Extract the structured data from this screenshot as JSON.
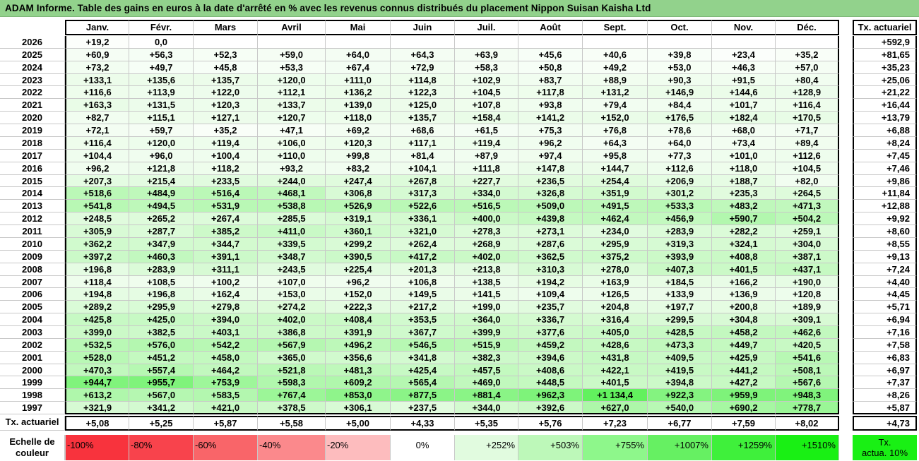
{
  "title": "ADAM Informe. Table des gains en euros à la date d'arrêté en % avec les revenus connus distribués du placement Nippon Suisan Kaisha Ltd",
  "months": [
    "Janv.",
    "Févr.",
    "Mars",
    "Avril",
    "Mai",
    "Juin",
    "Juil.",
    "Août",
    "Sept.",
    "Oct.",
    "Nov.",
    "Déc."
  ],
  "tx_header": "Tx. actuariel",
  "rows": [
    {
      "year": "2026",
      "values": [
        "+19,2",
        "0,0",
        "",
        "",
        "",
        "",
        "",
        "",
        "",
        "",
        "",
        ""
      ],
      "tx": "+592,9"
    },
    {
      "year": "2025",
      "values": [
        "+60,9",
        "+56,3",
        "+52,3",
        "+59,0",
        "+64,0",
        "+64,3",
        "+63,9",
        "+45,6",
        "+40,6",
        "+39,8",
        "+23,4",
        "+35,2"
      ],
      "tx": "+81,65"
    },
    {
      "year": "2024",
      "values": [
        "+73,2",
        "+49,7",
        "+45,8",
        "+53,3",
        "+67,4",
        "+72,9",
        "+58,3",
        "+50,8",
        "+49,2",
        "+53,0",
        "+46,3",
        "+57,0"
      ],
      "tx": "+35,23"
    },
    {
      "year": "2023",
      "values": [
        "+133,1",
        "+135,6",
        "+135,7",
        "+120,0",
        "+111,0",
        "+114,8",
        "+102,9",
        "+83,7",
        "+88,9",
        "+90,3",
        "+91,5",
        "+80,4"
      ],
      "tx": "+25,06"
    },
    {
      "year": "2022",
      "values": [
        "+116,6",
        "+113,9",
        "+122,0",
        "+112,1",
        "+136,2",
        "+122,3",
        "+104,5",
        "+117,8",
        "+131,2",
        "+146,9",
        "+144,6",
        "+128,9"
      ],
      "tx": "+21,22"
    },
    {
      "year": "2021",
      "values": [
        "+163,3",
        "+131,5",
        "+120,3",
        "+133,7",
        "+139,0",
        "+125,0",
        "+107,8",
        "+93,8",
        "+79,4",
        "+84,4",
        "+101,7",
        "+116,4"
      ],
      "tx": "+16,44"
    },
    {
      "year": "2020",
      "values": [
        "+82,7",
        "+115,1",
        "+127,1",
        "+120,7",
        "+118,0",
        "+135,7",
        "+158,4",
        "+141,2",
        "+152,0",
        "+176,5",
        "+182,4",
        "+170,5"
      ],
      "tx": "+13,79"
    },
    {
      "year": "2019",
      "values": [
        "+72,1",
        "+59,7",
        "+35,2",
        "+47,1",
        "+69,2",
        "+68,6",
        "+61,5",
        "+75,3",
        "+76,8",
        "+78,6",
        "+68,0",
        "+71,7"
      ],
      "tx": "+6,88"
    },
    {
      "year": "2018",
      "values": [
        "+116,4",
        "+120,0",
        "+119,4",
        "+106,0",
        "+120,3",
        "+117,1",
        "+119,4",
        "+96,2",
        "+64,3",
        "+64,0",
        "+73,4",
        "+89,4"
      ],
      "tx": "+8,24"
    },
    {
      "year": "2017",
      "values": [
        "+104,4",
        "+96,0",
        "+100,4",
        "+110,0",
        "+99,8",
        "+81,4",
        "+87,9",
        "+97,4",
        "+95,8",
        "+77,3",
        "+101,0",
        "+112,6"
      ],
      "tx": "+7,45"
    },
    {
      "year": "2016",
      "values": [
        "+96,2",
        "+121,8",
        "+118,2",
        "+93,2",
        "+83,2",
        "+104,1",
        "+111,8",
        "+147,8",
        "+144,7",
        "+112,6",
        "+118,0",
        "+104,5"
      ],
      "tx": "+7,46"
    },
    {
      "year": "2015",
      "values": [
        "+207,3",
        "+215,4",
        "+233,5",
        "+244,0",
        "+247,4",
        "+267,8",
        "+227,7",
        "+236,5",
        "+254,4",
        "+206,9",
        "+188,7",
        "+82,0"
      ],
      "tx": "+9,86"
    },
    {
      "year": "2014",
      "values": [
        "+518,6",
        "+484,9",
        "+516,4",
        "+468,1",
        "+306,8",
        "+317,3",
        "+334,0",
        "+326,8",
        "+351,9",
        "+301,2",
        "+235,3",
        "+264,5"
      ],
      "tx": "+11,84"
    },
    {
      "year": "2013",
      "values": [
        "+541,8",
        "+494,5",
        "+531,9",
        "+538,8",
        "+526,9",
        "+522,6",
        "+516,5",
        "+509,0",
        "+491,5",
        "+533,3",
        "+483,2",
        "+471,3"
      ],
      "tx": "+12,88"
    },
    {
      "year": "2012",
      "values": [
        "+248,5",
        "+265,2",
        "+267,4",
        "+285,5",
        "+319,1",
        "+336,1",
        "+400,0",
        "+439,8",
        "+462,4",
        "+456,9",
        "+590,7",
        "+504,2"
      ],
      "tx": "+9,92"
    },
    {
      "year": "2011",
      "values": [
        "+305,9",
        "+287,7",
        "+385,2",
        "+411,0",
        "+360,1",
        "+321,0",
        "+278,3",
        "+273,1",
        "+234,0",
        "+283,9",
        "+282,2",
        "+259,1"
      ],
      "tx": "+8,60"
    },
    {
      "year": "2010",
      "values": [
        "+362,2",
        "+347,9",
        "+344,7",
        "+339,5",
        "+299,2",
        "+262,4",
        "+268,9",
        "+287,6",
        "+295,9",
        "+319,3",
        "+324,1",
        "+304,0"
      ],
      "tx": "+8,55"
    },
    {
      "year": "2009",
      "values": [
        "+397,2",
        "+460,3",
        "+391,1",
        "+348,7",
        "+390,5",
        "+417,2",
        "+402,0",
        "+362,5",
        "+375,2",
        "+393,9",
        "+408,8",
        "+387,1"
      ],
      "tx": "+9,13"
    },
    {
      "year": "2008",
      "values": [
        "+196,8",
        "+283,9",
        "+311,1",
        "+243,5",
        "+225,4",
        "+201,3",
        "+213,8",
        "+310,3",
        "+278,0",
        "+407,3",
        "+401,5",
        "+437,1"
      ],
      "tx": "+7,24"
    },
    {
      "year": "2007",
      "values": [
        "+118,4",
        "+108,5",
        "+100,2",
        "+107,0",
        "+96,2",
        "+106,8",
        "+138,5",
        "+194,2",
        "+163,9",
        "+184,5",
        "+166,2",
        "+190,0"
      ],
      "tx": "+4,40"
    },
    {
      "year": "2006",
      "values": [
        "+194,8",
        "+196,8",
        "+162,4",
        "+153,0",
        "+152,0",
        "+149,5",
        "+141,5",
        "+109,4",
        "+126,5",
        "+133,9",
        "+136,9",
        "+120,8"
      ],
      "tx": "+4,45"
    },
    {
      "year": "2005",
      "values": [
        "+289,2",
        "+295,9",
        "+279,8",
        "+274,2",
        "+222,3",
        "+217,2",
        "+199,0",
        "+235,7",
        "+204,8",
        "+197,7",
        "+200,8",
        "+189,9"
      ],
      "tx": "+5,71"
    },
    {
      "year": "2004",
      "values": [
        "+425,8",
        "+425,0",
        "+394,0",
        "+402,0",
        "+408,4",
        "+353,5",
        "+364,0",
        "+336,7",
        "+316,4",
        "+299,5",
        "+304,8",
        "+309,1"
      ],
      "tx": "+6,94"
    },
    {
      "year": "2003",
      "values": [
        "+399,0",
        "+382,5",
        "+403,1",
        "+386,8",
        "+391,9",
        "+367,7",
        "+399,9",
        "+377,6",
        "+405,0",
        "+428,5",
        "+458,2",
        "+462,6"
      ],
      "tx": "+7,16"
    },
    {
      "year": "2002",
      "values": [
        "+532,5",
        "+576,0",
        "+542,2",
        "+567,9",
        "+496,2",
        "+546,5",
        "+515,9",
        "+459,2",
        "+428,6",
        "+473,3",
        "+449,7",
        "+420,5"
      ],
      "tx": "+7,58"
    },
    {
      "year": "2001",
      "values": [
        "+528,0",
        "+451,2",
        "+458,0",
        "+365,0",
        "+356,6",
        "+341,8",
        "+382,3",
        "+394,6",
        "+431,8",
        "+409,5",
        "+425,9",
        "+541,6"
      ],
      "tx": "+6,83"
    },
    {
      "year": "2000",
      "values": [
        "+470,3",
        "+557,4",
        "+464,2",
        "+521,8",
        "+481,3",
        "+425,4",
        "+457,5",
        "+408,6",
        "+422,1",
        "+419,5",
        "+441,2",
        "+508,1"
      ],
      "tx": "+6,97"
    },
    {
      "year": "1999",
      "values": [
        "+944,7",
        "+955,7",
        "+753,9",
        "+598,3",
        "+609,2",
        "+565,4",
        "+469,0",
        "+448,5",
        "+401,5",
        "+394,8",
        "+427,2",
        "+567,6"
      ],
      "tx": "+7,37"
    },
    {
      "year": "1998",
      "values": [
        "+613,2",
        "+567,0",
        "+583,5",
        "+767,4",
        "+853,0",
        "+877,5",
        "+881,4",
        "+962,3",
        "+1 134,4",
        "+922,3",
        "+959,9",
        "+948,3"
      ],
      "tx": "+8,26"
    },
    {
      "year": "1997",
      "values": [
        "+321,9",
        "+341,2",
        "+421,0",
        "+378,5",
        "+306,1",
        "+237,5",
        "+344,0",
        "+392,6",
        "+627,0",
        "+540,0",
        "+690,2",
        "+778,7"
      ],
      "tx": "+5,87"
    }
  ],
  "tx_row": {
    "label": "Tx. actuariel",
    "values": [
      "+5,08",
      "+5,25",
      "+5,87",
      "+5,58",
      "+5,00",
      "+4,33",
      "+5,35",
      "+5,76",
      "+7,23",
      "+6,77",
      "+7,59",
      "+8,02"
    ],
    "total": "+4,73"
  },
  "scale": {
    "label_line1": "Echelle de",
    "label_line2": "couleur",
    "items": [
      {
        "text": "-100%",
        "color": "#f8333d"
      },
      {
        "text": "-80%",
        "color": "#f8434c"
      },
      {
        "text": "-60%",
        "color": "#f96569"
      },
      {
        "text": "-40%",
        "color": "#fb898c"
      },
      {
        "text": "-20%",
        "color": "#fdbcbe"
      },
      {
        "text": "0%",
        "color": "#ffffff"
      },
      {
        "text": "+252%",
        "color": "#e1fbdf"
      },
      {
        "text": "+503%",
        "color": "#bdf8b9"
      },
      {
        "text": "+755%",
        "color": "#8ef78b"
      },
      {
        "text": "+1007%",
        "color": "#66f062"
      },
      {
        "text": "+1259%",
        "color": "#3ff03b"
      },
      {
        "text": "+1510%",
        "color": "#19f014"
      }
    ],
    "tx_label_line1": "Tx.",
    "tx_label_line2": "actua. 10%",
    "tx_color": "#19f014"
  }
}
